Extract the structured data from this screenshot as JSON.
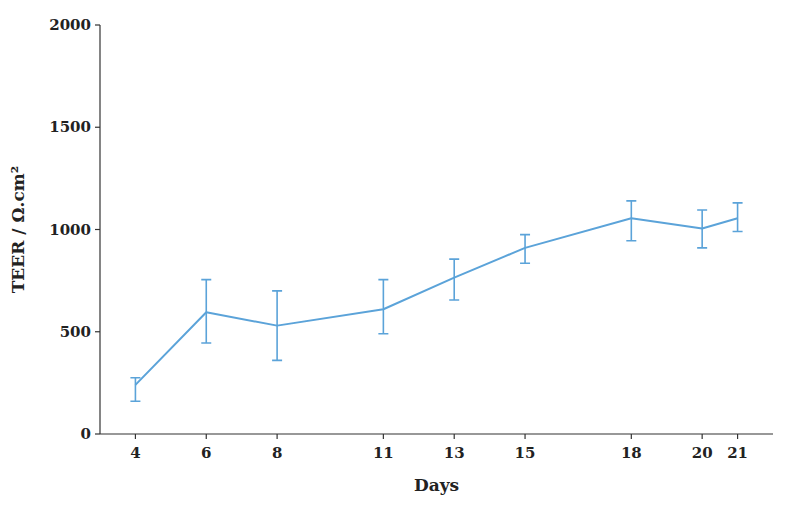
{
  "chart_data": {
    "type": "line",
    "x": [
      4,
      6,
      8,
      11,
      13,
      15,
      18,
      20,
      21
    ],
    "series": [
      {
        "color": "#5ba3d9",
        "values": [
          240,
          595,
          530,
          610,
          765,
          910,
          1055,
          1005,
          1055
        ],
        "err_low": [
          80,
          150,
          170,
          120,
          110,
          75,
          110,
          95,
          65
        ],
        "err_high": [
          35,
          160,
          170,
          145,
          90,
          65,
          85,
          90,
          75
        ]
      }
    ],
    "xlabel": "Days",
    "ylabel": "TEER / Ω.cm²",
    "xlim": [
      3,
      22
    ],
    "xticks": [
      4,
      6,
      8,
      11,
      13,
      15,
      18,
      20,
      21
    ],
    "ylim": [
      0,
      2000
    ],
    "yticks": [
      0,
      500,
      1000,
      1500,
      2000
    ],
    "grid": false
  }
}
